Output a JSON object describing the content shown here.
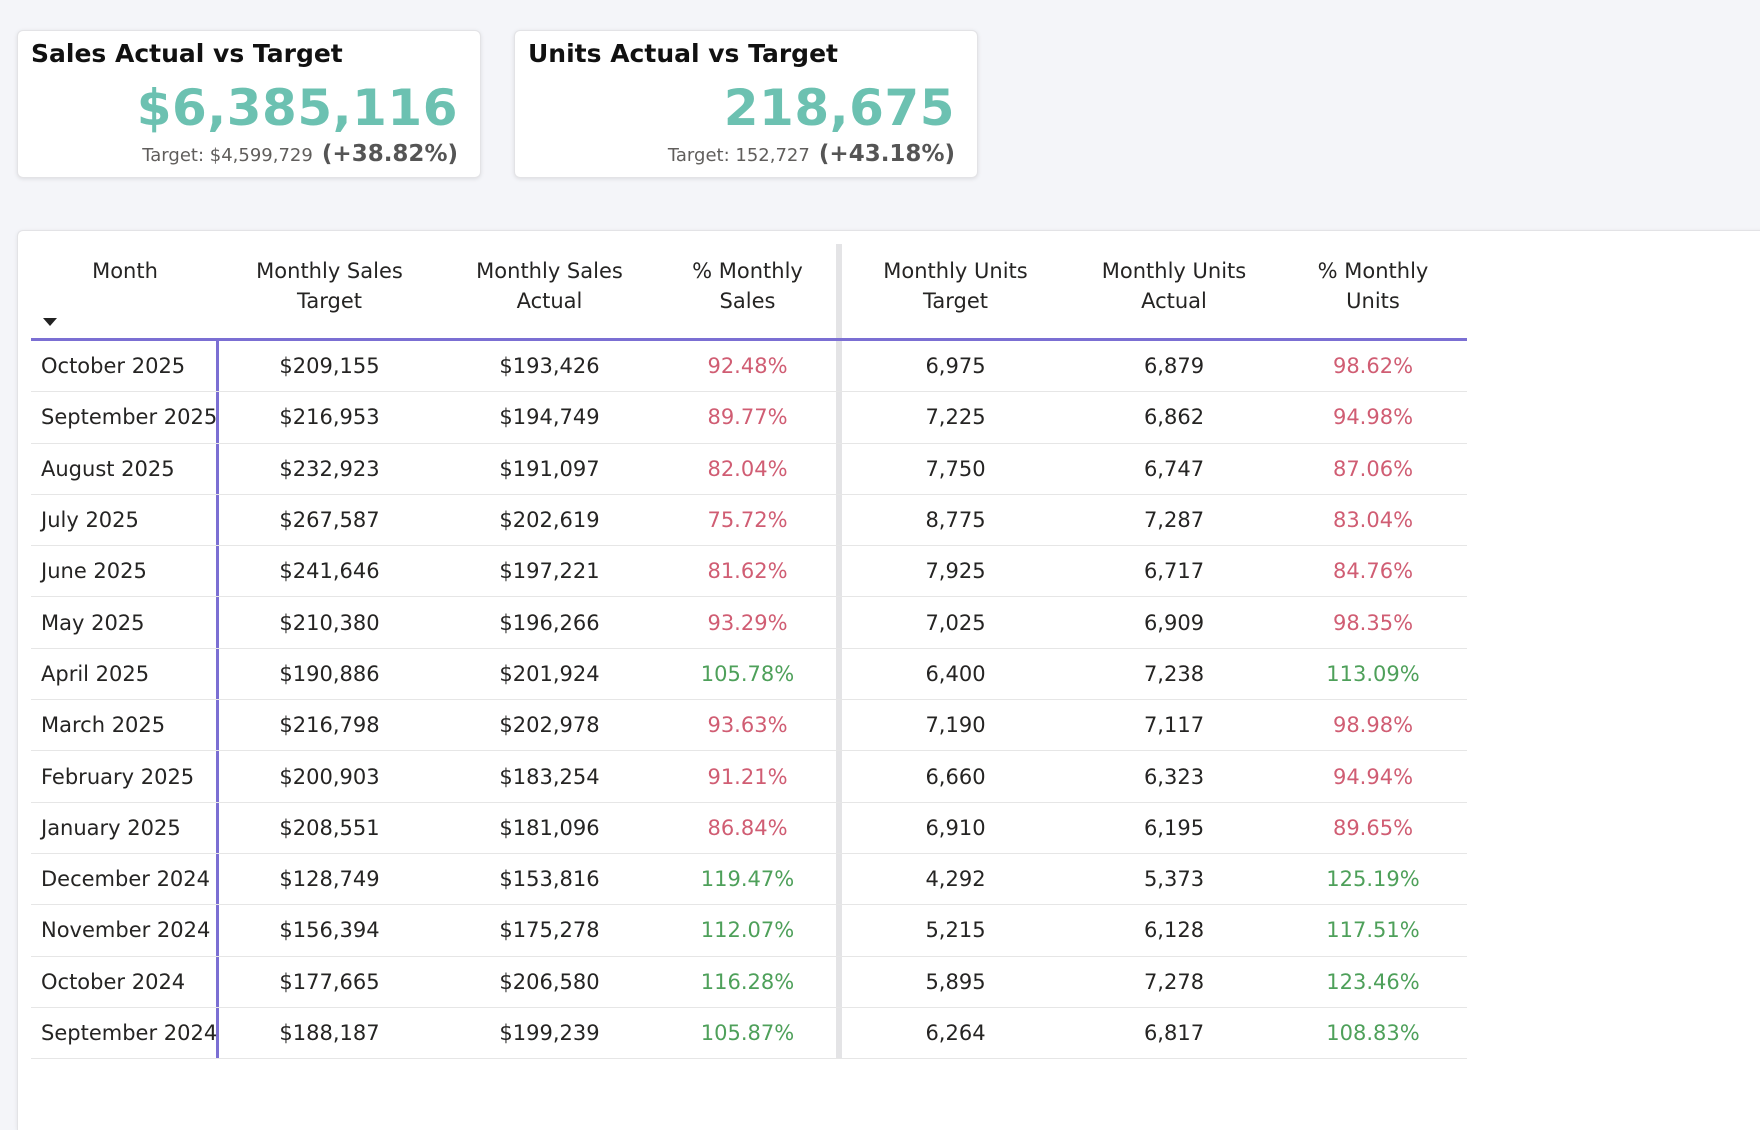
{
  "kpis": {
    "sales": {
      "title": "Sales Actual vs Target",
      "value": "$6,385,116",
      "target_label": "Target: $4,599,729",
      "variance": "(+38.82%)"
    },
    "units": {
      "title": "Units Actual vs Target",
      "value": "218,675",
      "target_label": "Target: 152,727",
      "variance": "(+43.18%)"
    }
  },
  "colors": {
    "accent_teal": "#6cc1b1",
    "good": "#4ea05a",
    "bad": "#d05d73",
    "header_rule": "#7b6fd3"
  },
  "table": {
    "sort_icon": "sort-descending-icon",
    "columns": [
      {
        "key": "month",
        "label": "Month"
      },
      {
        "key": "sales_target",
        "label": "Monthly Sales Target"
      },
      {
        "key": "sales_actual",
        "label": "Monthly Sales Actual"
      },
      {
        "key": "pct_sales",
        "label": "% Monthly Sales"
      },
      {
        "key": "units_target",
        "label": "Monthly Units Target"
      },
      {
        "key": "units_actual",
        "label": "Monthly Units Actual"
      },
      {
        "key": "pct_units",
        "label": "% Monthly Units"
      }
    ],
    "rows": [
      {
        "month": "October 2025",
        "sales_target": "$209,155",
        "sales_actual": "$193,426",
        "pct_sales": "92.48%",
        "units_target": "6,975",
        "units_actual": "6,879",
        "pct_units": "98.62%"
      },
      {
        "month": "September 2025",
        "sales_target": "$216,953",
        "sales_actual": "$194,749",
        "pct_sales": "89.77%",
        "units_target": "7,225",
        "units_actual": "6,862",
        "pct_units": "94.98%"
      },
      {
        "month": "August 2025",
        "sales_target": "$232,923",
        "sales_actual": "$191,097",
        "pct_sales": "82.04%",
        "units_target": "7,750",
        "units_actual": "6,747",
        "pct_units": "87.06%"
      },
      {
        "month": "July 2025",
        "sales_target": "$267,587",
        "sales_actual": "$202,619",
        "pct_sales": "75.72%",
        "units_target": "8,775",
        "units_actual": "7,287",
        "pct_units": "83.04%"
      },
      {
        "month": "June 2025",
        "sales_target": "$241,646",
        "sales_actual": "$197,221",
        "pct_sales": "81.62%",
        "units_target": "7,925",
        "units_actual": "6,717",
        "pct_units": "84.76%"
      },
      {
        "month": "May 2025",
        "sales_target": "$210,380",
        "sales_actual": "$196,266",
        "pct_sales": "93.29%",
        "units_target": "7,025",
        "units_actual": "6,909",
        "pct_units": "98.35%"
      },
      {
        "month": "April 2025",
        "sales_target": "$190,886",
        "sales_actual": "$201,924",
        "pct_sales": "105.78%",
        "units_target": "6,400",
        "units_actual": "7,238",
        "pct_units": "113.09%"
      },
      {
        "month": "March 2025",
        "sales_target": "$216,798",
        "sales_actual": "$202,978",
        "pct_sales": "93.63%",
        "units_target": "7,190",
        "units_actual": "7,117",
        "pct_units": "98.98%"
      },
      {
        "month": "February 2025",
        "sales_target": "$200,903",
        "sales_actual": "$183,254",
        "pct_sales": "91.21%",
        "units_target": "6,660",
        "units_actual": "6,323",
        "pct_units": "94.94%"
      },
      {
        "month": "January 2025",
        "sales_target": "$208,551",
        "sales_actual": "$181,096",
        "pct_sales": "86.84%",
        "units_target": "6,910",
        "units_actual": "6,195",
        "pct_units": "89.65%"
      },
      {
        "month": "December 2024",
        "sales_target": "$128,749",
        "sales_actual": "$153,816",
        "pct_sales": "119.47%",
        "units_target": "4,292",
        "units_actual": "5,373",
        "pct_units": "125.19%"
      },
      {
        "month": "November 2024",
        "sales_target": "$156,394",
        "sales_actual": "$175,278",
        "pct_sales": "112.07%",
        "units_target": "5,215",
        "units_actual": "6,128",
        "pct_units": "117.51%"
      },
      {
        "month": "October 2024",
        "sales_target": "$177,665",
        "sales_actual": "$206,580",
        "pct_sales": "116.28%",
        "units_target": "5,895",
        "units_actual": "7,278",
        "pct_units": "123.46%"
      },
      {
        "month": "September 2024",
        "sales_target": "$188,187",
        "sales_actual": "$199,239",
        "pct_sales": "105.87%",
        "units_target": "6,264",
        "units_actual": "6,817",
        "pct_units": "108.83%"
      }
    ]
  }
}
